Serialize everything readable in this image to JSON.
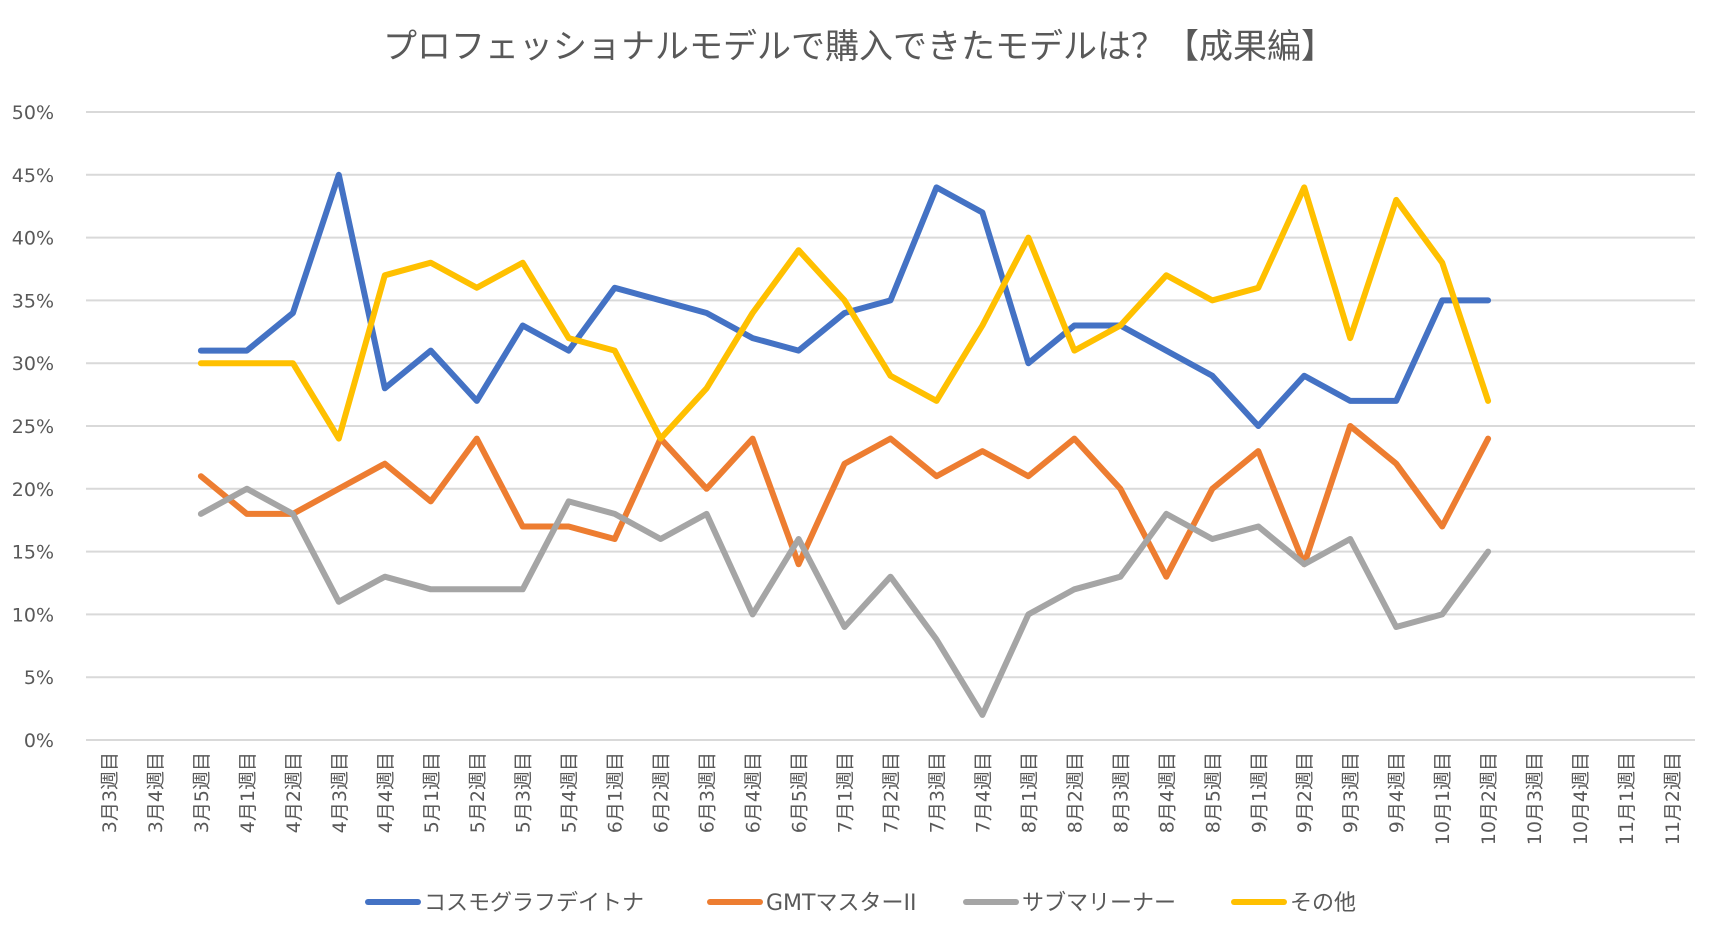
{
  "chart_data": {
    "type": "line",
    "title": "プロフェッショナルモデルで購入できたモデルは？【成果編】",
    "xlabel": "",
    "ylabel": "",
    "ylim": [
      0,
      50
    ],
    "yticks": [
      "0%",
      "5%",
      "10%",
      "15%",
      "20%",
      "25%",
      "30%",
      "35%",
      "40%",
      "45%",
      "50%"
    ],
    "grid": true,
    "legend_position": "bottom",
    "categories": [
      "3月3週目",
      "3月4週目",
      "3月5週目",
      "4月1週目",
      "4月2週目",
      "4月3週目",
      "4月4週目",
      "5月1週目",
      "5月2週目",
      "5月3週目",
      "5月4週目",
      "6月1週目",
      "6月2週目",
      "6月3週目",
      "6月4週目",
      "6月5週目",
      "7月1週目",
      "7月2週目",
      "7月3週目",
      "7月4週目",
      "8月1週目",
      "8月2週目",
      "8月3週目",
      "8月4週目",
      "8月5週目",
      "9月1週目",
      "9月2週目",
      "9月3週目",
      "9月4週目",
      "10月1週目",
      "10月2週目",
      "10月3週目",
      "10月4週目",
      "11月1週目",
      "11月2週目"
    ],
    "series": [
      {
        "name": "コスモグラフデイトナ",
        "color": "#4472c4",
        "values": [
          null,
          null,
          31,
          31,
          34,
          45,
          28,
          31,
          27,
          33,
          31,
          36,
          35,
          34,
          32,
          31,
          34,
          35,
          44,
          42,
          30,
          33,
          33,
          31,
          29,
          25,
          29,
          27,
          27,
          35,
          35,
          null,
          null,
          null,
          null
        ]
      },
      {
        "name": "GMTマスターII",
        "color": "#ed7d31",
        "values": [
          null,
          null,
          21,
          18,
          18,
          20,
          22,
          19,
          24,
          17,
          17,
          16,
          24,
          20,
          24,
          14,
          22,
          24,
          21,
          23,
          21,
          24,
          20,
          13,
          20,
          23,
          14,
          25,
          22,
          17,
          24,
          null,
          null,
          null,
          null
        ]
      },
      {
        "name": "サブマリーナー",
        "color": "#a5a5a5",
        "values": [
          null,
          null,
          18,
          20,
          18,
          11,
          13,
          12,
          12,
          12,
          19,
          18,
          16,
          18,
          10,
          16,
          9,
          13,
          8,
          2,
          10,
          12,
          13,
          18,
          16,
          17,
          14,
          16,
          9,
          10,
          15,
          null,
          null,
          null,
          null
        ]
      },
      {
        "name": "その他",
        "color": "#ffc000",
        "values": [
          null,
          null,
          30,
          30,
          30,
          24,
          37,
          38,
          36,
          38,
          32,
          31,
          24,
          28,
          34,
          39,
          35,
          29,
          27,
          33,
          40,
          31,
          33,
          37,
          35,
          36,
          44,
          32,
          43,
          38,
          27,
          null,
          null,
          null,
          null
        ]
      }
    ]
  }
}
